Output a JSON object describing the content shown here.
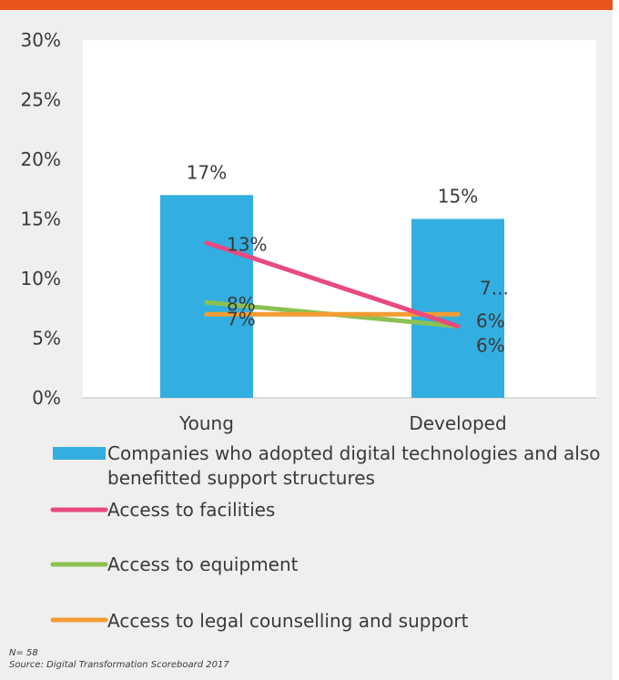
{
  "chart_data": {
    "type": "bar",
    "categories": [
      "Young",
      "Developed"
    ],
    "ylim": [
      0,
      30
    ],
    "yticks": [
      "0%",
      "5%",
      "10%",
      "15%",
      "20%",
      "25%",
      "30%"
    ],
    "series": [
      {
        "name": "Companies who adopted digital technologies and also benefitted support structures",
        "type": "bar",
        "values": [
          17,
          15
        ],
        "labels": [
          "17%",
          "15%"
        ],
        "color": "#33aee0"
      },
      {
        "name": "Access to facilities",
        "type": "line",
        "values": [
          13,
          6
        ],
        "labels": [
          "13%",
          "6%"
        ],
        "color": "#e84a7f"
      },
      {
        "name": "Access to equipment",
        "type": "line",
        "values": [
          8,
          6
        ],
        "labels": [
          "8%",
          "6%"
        ],
        "color": "#8cc152"
      },
      {
        "name": "Access to legal counselling and support",
        "type": "line",
        "values": [
          7,
          7
        ],
        "labels": [
          "7%",
          "7..."
        ],
        "color": "#f39c33"
      }
    ],
    "legend_position": "bottom",
    "grid": false
  },
  "legend": {
    "bar_line1": "Companies who adopted digital technologies and also",
    "bar_line2": "benefitted support structures"
  },
  "notes": {
    "n": "N= 58",
    "source": "Source: Digital Transformation Scoreboard 2017"
  },
  "colors": {
    "header": "#e8541a",
    "background": "#efefef"
  }
}
